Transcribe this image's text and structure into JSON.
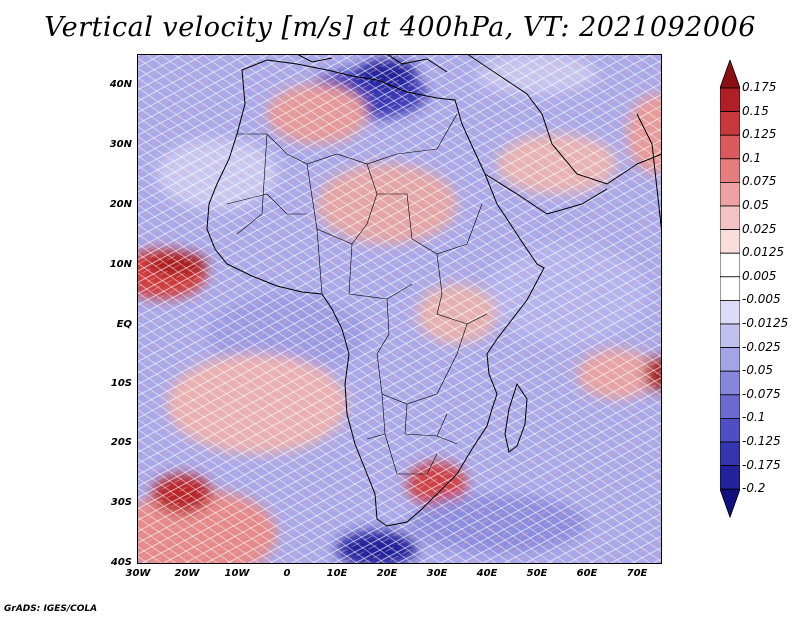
{
  "title": "Vertical velocity [m/s] at 400hPa, VT: 2021092006",
  "y_labels": [
    "40N",
    "30N",
    "20N",
    "10N",
    "EQ",
    "10S",
    "20S",
    "30S",
    "40S"
  ],
  "x_labels": [
    "30W",
    "20W",
    "10W",
    "0",
    "10E",
    "20E",
    "30E",
    "40E",
    "50E",
    "60E",
    "70E"
  ],
  "colorbar": {
    "labels": [
      "0.175",
      "0.15",
      "0.125",
      "0.1",
      "0.075",
      "0.05",
      "0.025",
      "0.0125",
      "0.005",
      "-0.005",
      "-0.0125",
      "-0.025",
      "-0.05",
      "-0.075",
      "-0.1",
      "-0.125",
      "-0.175",
      "-0.2"
    ],
    "colors": [
      "#8b0f14",
      "#b01f26",
      "#c9383c",
      "#d95a5c",
      "#e47d7e",
      "#eda1a1",
      "#f4c3c3",
      "#fadede",
      "#ffffff",
      "#ffffff",
      "#dcdcf6",
      "#c1c1ef",
      "#a3a3e6",
      "#8686dc",
      "#6a6ad0",
      "#4f4fc3",
      "#3535b0",
      "#22229c",
      "#10107e"
    ]
  },
  "credit": "GrADS: IGES/COLA"
}
